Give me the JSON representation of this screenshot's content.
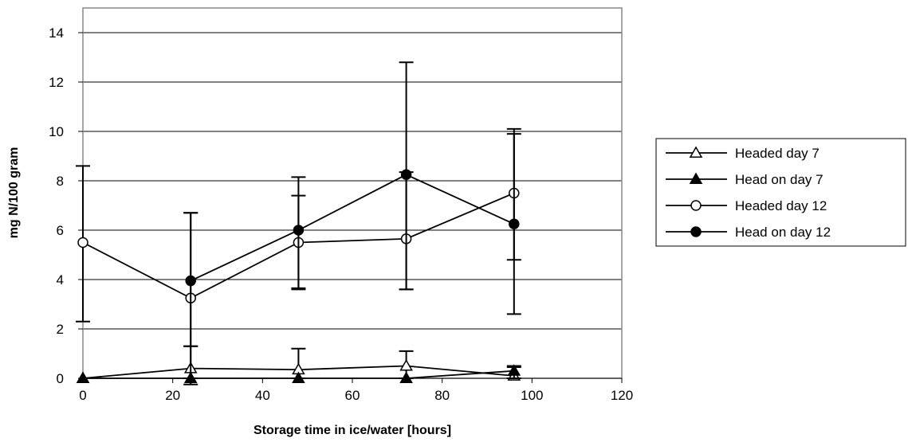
{
  "chart_data": {
    "type": "line",
    "title": "",
    "xlabel": "Storage time in ice/water [hours]",
    "ylabel": "mg N/100 gram",
    "xlim": [
      0,
      120
    ],
    "ylim": [
      0,
      15
    ],
    "xticks": [
      0,
      20,
      40,
      60,
      80,
      100,
      120
    ],
    "yticks": [
      0,
      2,
      4,
      6,
      8,
      10,
      12,
      14
    ],
    "grid": "horizontal",
    "legend_position": "right",
    "series": [
      {
        "name": "Headed day 7",
        "marker": "triangle-open",
        "x": [
          0,
          24,
          48,
          72,
          96
        ],
        "y": [
          0,
          0.4,
          0.35,
          0.5,
          0.1
        ],
        "err_low": [
          null,
          0.4,
          0.35,
          0.5,
          0.1
        ],
        "err_high": [
          null,
          0.9,
          0.85,
          0.6,
          0.4
        ]
      },
      {
        "name": "Head on day 7",
        "marker": "triangle-filled",
        "x": [
          0,
          24,
          48,
          72,
          96
        ],
        "y": [
          0,
          0,
          0,
          0,
          0.3
        ],
        "err_low": [
          null,
          0.25,
          null,
          null,
          0.3
        ],
        "err_high": [
          null,
          null,
          null,
          null,
          0.15
        ]
      },
      {
        "name": "Headed day 12",
        "marker": "circle-open",
        "x": [
          0,
          24,
          48,
          72,
          96
        ],
        "y": [
          5.5,
          3.25,
          5.5,
          5.65,
          7.5
        ],
        "err_low": [
          3.2,
          1.95,
          1.85,
          2.05,
          4.9
        ],
        "err_high": [
          3.1,
          3.45,
          2.65,
          7.15,
          2.6
        ]
      },
      {
        "name": "Head on day 12",
        "marker": "circle-filled",
        "x": [
          24,
          48,
          72,
          96
        ],
        "y": [
          3.95,
          6.0,
          8.25,
          6.25
        ],
        "err_low": [
          3.95,
          2.4,
          4.65,
          1.45
        ],
        "err_high": [
          2.75,
          1.4,
          0.1,
          3.65
        ]
      }
    ]
  }
}
